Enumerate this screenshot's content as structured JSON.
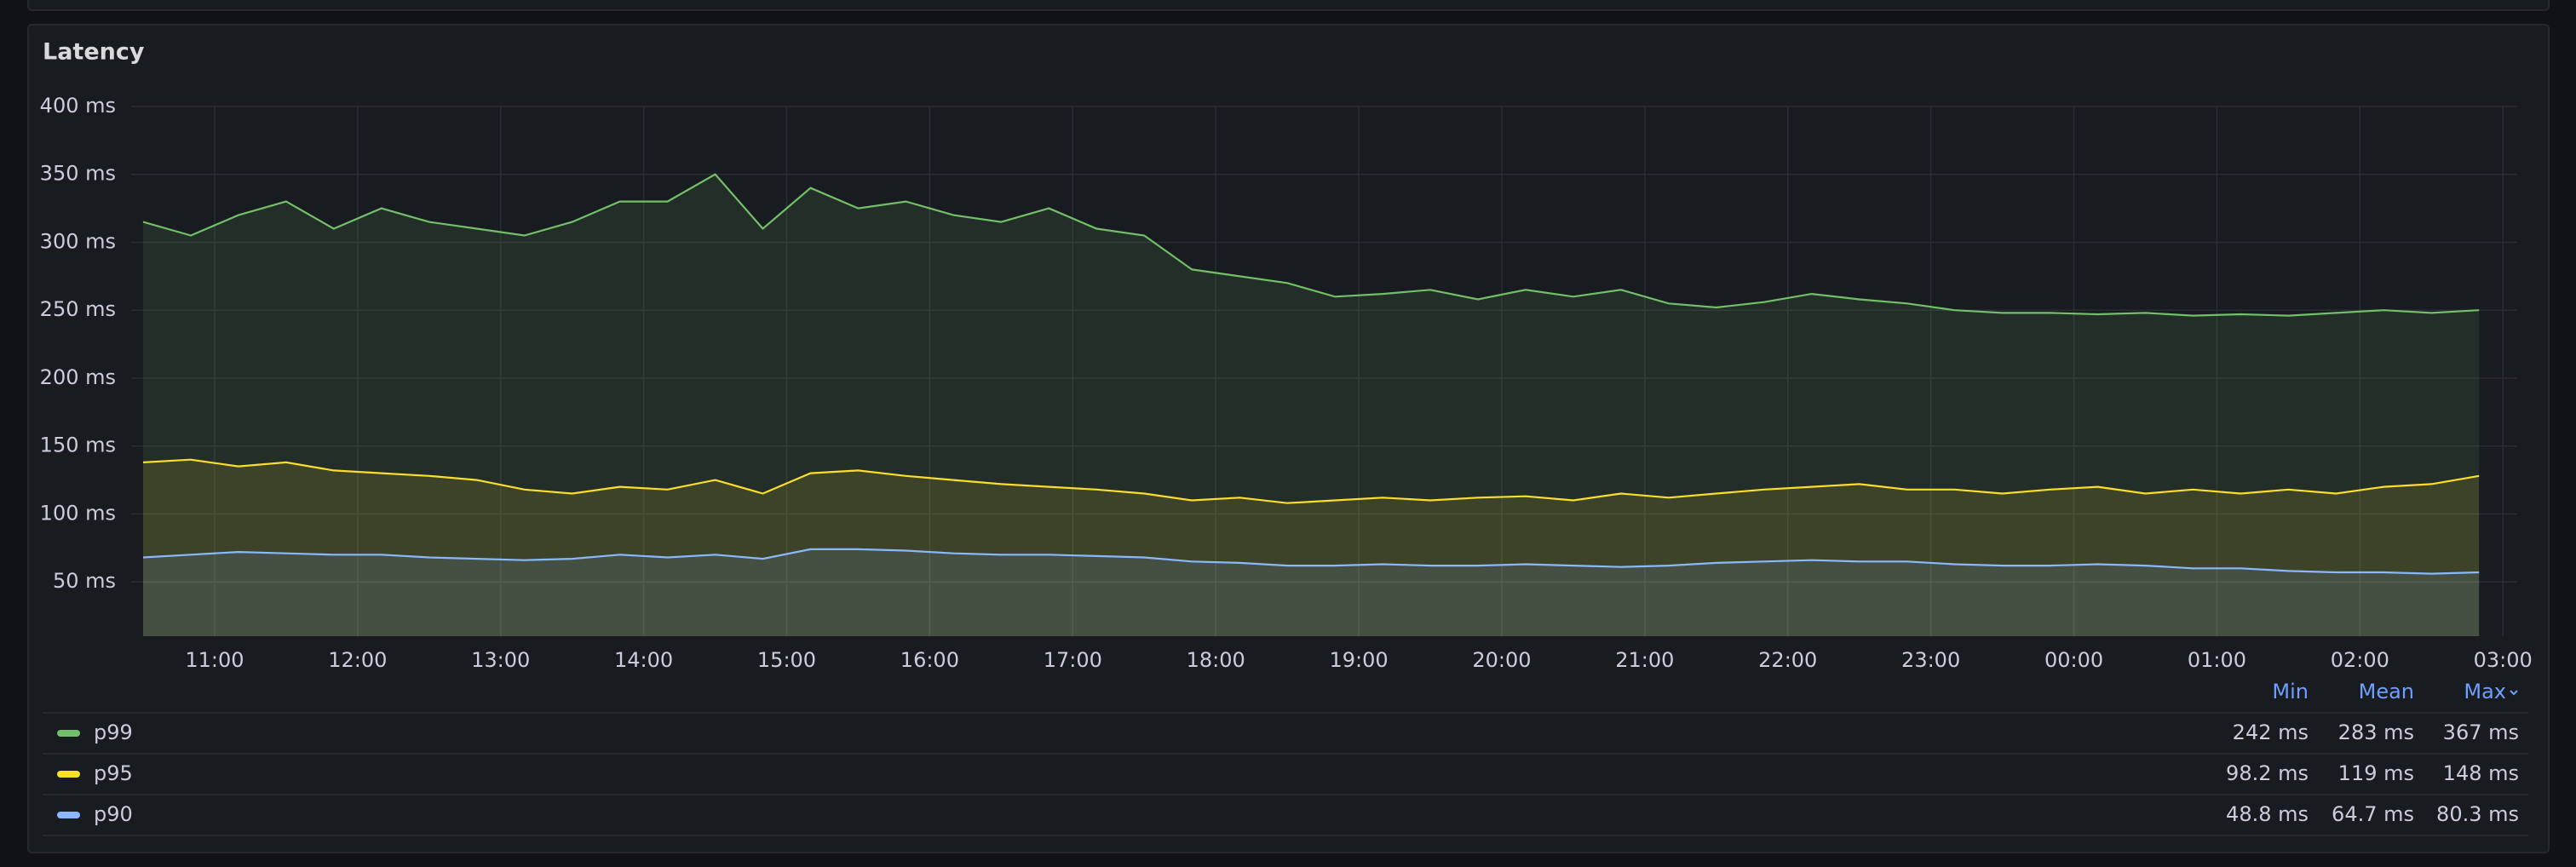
{
  "chart_data": {
    "type": "line",
    "title": "Latency",
    "x": [
      630,
      650,
      670,
      690,
      710,
      730,
      750,
      770,
      790,
      810,
      830,
      850,
      870,
      890,
      910,
      930,
      950,
      970,
      990,
      1010,
      1030,
      1050,
      1070,
      1090,
      1110,
      1130,
      1150,
      1170,
      1190,
      1210,
      1230,
      1250,
      1270,
      1290,
      1310,
      1330,
      1350,
      1370,
      1390,
      1410,
      1430,
      1450,
      1470,
      1490,
      1510,
      1530,
      1550,
      1570,
      1590,
      1610
    ],
    "xlim": [
      625,
      1626
    ],
    "xticks": [
      {
        "value": 660,
        "label": "11:00"
      },
      {
        "value": 720,
        "label": "12:00"
      },
      {
        "value": 780,
        "label": "13:00"
      },
      {
        "value": 840,
        "label": "14:00"
      },
      {
        "value": 900,
        "label": "15:00"
      },
      {
        "value": 960,
        "label": "16:00"
      },
      {
        "value": 1020,
        "label": "17:00"
      },
      {
        "value": 1080,
        "label": "18:00"
      },
      {
        "value": 1140,
        "label": "19:00"
      },
      {
        "value": 1200,
        "label": "20:00"
      },
      {
        "value": 1260,
        "label": "21:00"
      },
      {
        "value": 1320,
        "label": "22:00"
      },
      {
        "value": 1380,
        "label": "23:00"
      },
      {
        "value": 1440,
        "label": "00:00"
      },
      {
        "value": 1500,
        "label": "01:00"
      },
      {
        "value": 1560,
        "label": "02:00"
      },
      {
        "value": 1620,
        "label": "03:00"
      }
    ],
    "ylim": [
      10,
      400
    ],
    "yticks": [
      {
        "value": 50,
        "label": "50 ms"
      },
      {
        "value": 100,
        "label": "100 ms"
      },
      {
        "value": 150,
        "label": "150 ms"
      },
      {
        "value": 200,
        "label": "200 ms"
      },
      {
        "value": 250,
        "label": "250 ms"
      },
      {
        "value": 300,
        "label": "300 ms"
      },
      {
        "value": 350,
        "label": "350 ms"
      },
      {
        "value": 400,
        "label": "400 ms"
      }
    ],
    "grid": true,
    "stats_columns": [
      "Min",
      "Mean",
      "Max"
    ],
    "series": [
      {
        "name": "p99",
        "color": "#73bf69",
        "stats": [
          "242 ms",
          "283 ms",
          "367 ms"
        ],
        "values": [
          315,
          305,
          320,
          330,
          310,
          325,
          315,
          310,
          305,
          315,
          330,
          330,
          350,
          310,
          340,
          325,
          330,
          320,
          315,
          325,
          310,
          305,
          280,
          275,
          270,
          260,
          262,
          265,
          258,
          265,
          260,
          265,
          255,
          252,
          256,
          262,
          258,
          255,
          250,
          248,
          248,
          247,
          248,
          246,
          247,
          246,
          248,
          250,
          248,
          250
        ]
      },
      {
        "name": "p95",
        "color": "#fade2a",
        "stats": [
          "98.2 ms",
          "119 ms",
          "148 ms"
        ],
        "values": [
          138,
          140,
          135,
          138,
          132,
          130,
          128,
          125,
          118,
          115,
          120,
          118,
          125,
          115,
          130,
          132,
          128,
          125,
          122,
          120,
          118,
          115,
          110,
          112,
          108,
          110,
          112,
          110,
          112,
          113,
          110,
          115,
          112,
          115,
          118,
          120,
          122,
          118,
          118,
          115,
          118,
          120,
          115,
          118,
          115,
          118,
          115,
          120,
          122,
          128
        ]
      },
      {
        "name": "p90",
        "color": "#8ab8ff",
        "stats": [
          "48.8 ms",
          "64.7 ms",
          "80.3 ms"
        ],
        "values": [
          68,
          70,
          72,
          71,
          70,
          70,
          68,
          67,
          66,
          67,
          70,
          68,
          70,
          67,
          74,
          74,
          73,
          71,
          70,
          70,
          69,
          68,
          65,
          64,
          62,
          62,
          63,
          62,
          62,
          63,
          62,
          61,
          62,
          64,
          65,
          66,
          65,
          65,
          63,
          62,
          62,
          63,
          62,
          60,
          60,
          58,
          57,
          57,
          56,
          57
        ]
      }
    ]
  }
}
